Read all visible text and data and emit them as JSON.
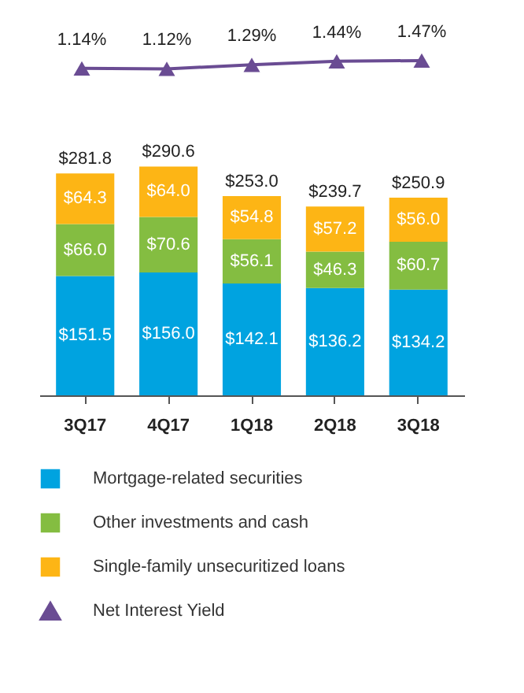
{
  "chart_data": [
    {
      "type": "line",
      "marker": "triangle",
      "data_labels": true,
      "legend": "bottom",
      "categories": [
        null,
        null,
        null,
        null,
        null
      ],
      "tick_labels": false,
      "series": [
        {
          "name": "Net Interest Yield",
          "color": "#6a4c93",
          "values": [
            1.14,
            1.12,
            1.29,
            1.44,
            1.47
          ],
          "value_labels": [
            "1.14%",
            "1.12%",
            "1.29%",
            "1.44%",
            "1.47%"
          ]
        }
      ]
    },
    {
      "type": "bar",
      "stacked": true,
      "data_labels": true,
      "legend": "bottom",
      "categories": [
        "3Q17",
        "4Q17",
        "1Q18",
        "2Q18",
        "3Q18"
      ],
      "series": [
        {
          "name": "Mortgage-related securities",
          "color": "#00a3e0",
          "values": [
            151.5,
            156.0,
            142.1,
            136.2,
            134.2
          ],
          "value_labels": [
            "$151.5",
            "$156.0",
            "$142.1",
            "$136.2",
            "$134.2"
          ]
        },
        {
          "name": "Other investments and cash",
          "color": "#84bd41",
          "values": [
            66.0,
            70.6,
            56.1,
            46.3,
            60.7
          ],
          "value_labels": [
            "$66.0",
            "$70.6",
            "$56.1",
            "$46.3",
            "$60.7"
          ]
        },
        {
          "name": "Single-family unsecuritized loans",
          "color": "#fdb515",
          "values": [
            64.3,
            64.0,
            54.8,
            57.2,
            56.0
          ],
          "value_labels": [
            "$64.3",
            "$64.0",
            "$54.8",
            "$57.2",
            "$56.0"
          ]
        }
      ],
      "totals": [
        "$281.8",
        "$290.6",
        "$253.0",
        "$239.7",
        "$250.9"
      ]
    }
  ]
}
